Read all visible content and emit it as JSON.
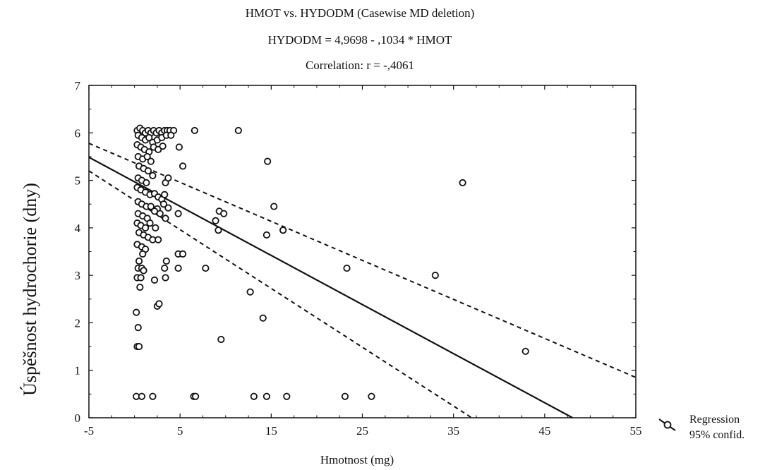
{
  "chart_data": {
    "type": "scatter",
    "title_lines": [
      "HMOT vs. HYDODM (Casewise MD deletion)",
      "HYDODM = 4,9698 - ,1034 * HMOT",
      "Correlation: r = -,4061"
    ],
    "xlabel": "Hmotnost (mg)",
    "ylabel": "Úspěšnost hydrochorie (dny)",
    "xlim": [
      -5,
      55
    ],
    "ylim": [
      0,
      7
    ],
    "xticks": [
      "-5",
      "5",
      "15",
      "25",
      "35",
      "45",
      "55"
    ],
    "yticks": [
      "0",
      "1",
      "2",
      "3",
      "4",
      "5",
      "6",
      "7"
    ],
    "grid": false,
    "regression": {
      "intercept": 4.9698,
      "slope": -0.1034
    },
    "confidence_band": {
      "upper": [
        [
          -5,
          5.78
        ],
        [
          55,
          0.85
        ]
      ],
      "lower": [
        [
          -5,
          5.2
        ],
        [
          37,
          0
        ]
      ]
    },
    "legend": {
      "position": "bottom-right",
      "entries": [
        "Regression",
        "95% confid."
      ]
    },
    "points": [
      [
        0.3,
        6.05
      ],
      [
        0.6,
        6.1
      ],
      [
        0.9,
        6.05
      ],
      [
        1.2,
        6.0
      ],
      [
        1.5,
        6.05
      ],
      [
        1.8,
        6.0
      ],
      [
        2.1,
        6.05
      ],
      [
        2.4,
        6.0
      ],
      [
        2.7,
        6.05
      ],
      [
        3.0,
        6.0
      ],
      [
        3.3,
        6.05
      ],
      [
        3.6,
        6.05
      ],
      [
        3.9,
        6.05
      ],
      [
        4.3,
        6.05
      ],
      [
        0.4,
        5.95
      ],
      [
        0.8,
        5.9
      ],
      [
        1.2,
        5.85
      ],
      [
        1.6,
        5.9
      ],
      [
        2.0,
        5.8
      ],
      [
        2.5,
        5.85
      ],
      [
        3.0,
        5.9
      ],
      [
        3.5,
        5.95
      ],
      [
        4.0,
        5.95
      ],
      [
        0.3,
        5.75
      ],
      [
        0.7,
        5.7
      ],
      [
        1.1,
        5.65
      ],
      [
        1.6,
        5.6
      ],
      [
        2.1,
        5.7
      ],
      [
        2.6,
        5.65
      ],
      [
        3.1,
        5.72
      ],
      [
        0.4,
        5.5
      ],
      [
        0.9,
        5.45
      ],
      [
        1.4,
        5.5
      ],
      [
        1.8,
        5.4
      ],
      [
        0.5,
        5.3
      ],
      [
        1.0,
        5.25
      ],
      [
        1.5,
        5.2
      ],
      [
        2.0,
        5.1
      ],
      [
        0.4,
        5.05
      ],
      [
        0.8,
        5.0
      ],
      [
        1.3,
        4.95
      ],
      [
        3.4,
        4.95
      ],
      [
        3.7,
        5.05
      ],
      [
        0.3,
        4.85
      ],
      [
        0.7,
        4.8
      ],
      [
        1.2,
        4.75
      ],
      [
        1.7,
        4.7
      ],
      [
        2.2,
        4.72
      ],
      [
        2.6,
        4.65
      ],
      [
        3.0,
        4.6
      ],
      [
        3.3,
        4.7
      ],
      [
        0.4,
        4.55
      ],
      [
        0.8,
        4.5
      ],
      [
        1.3,
        4.45
      ],
      [
        1.8,
        4.45
      ],
      [
        2.5,
        4.4
      ],
      [
        3.2,
        4.5
      ],
      [
        3.7,
        4.42
      ],
      [
        0.4,
        4.3
      ],
      [
        0.9,
        4.25
      ],
      [
        1.4,
        4.2
      ],
      [
        2.2,
        4.35
      ],
      [
        2.8,
        4.3
      ],
      [
        3.4,
        4.2
      ],
      [
        4.8,
        4.3
      ],
      [
        0.3,
        4.1
      ],
      [
        0.7,
        4.05
      ],
      [
        1.2,
        4.0
      ],
      [
        1.7,
        4.1
      ],
      [
        2.3,
        4.0
      ],
      [
        0.5,
        3.9
      ],
      [
        1.0,
        3.85
      ],
      [
        1.5,
        3.8
      ],
      [
        2.0,
        3.75
      ],
      [
        2.6,
        3.75
      ],
      [
        0.3,
        3.65
      ],
      [
        0.8,
        3.6
      ],
      [
        1.2,
        3.55
      ],
      [
        0.9,
        3.45
      ],
      [
        0.5,
        3.3
      ],
      [
        3.5,
        3.3
      ],
      [
        4.8,
        3.45
      ],
      [
        5.3,
        3.45
      ],
      [
        0.4,
        3.15
      ],
      [
        0.8,
        3.15
      ],
      [
        1.0,
        3.1
      ],
      [
        3.3,
        3.15
      ],
      [
        4.8,
        3.15
      ],
      [
        0.3,
        2.95
      ],
      [
        0.7,
        2.95
      ],
      [
        2.2,
        2.9
      ],
      [
        3.4,
        2.95
      ],
      [
        0.6,
        2.75
      ],
      [
        2.5,
        2.35
      ],
      [
        2.7,
        2.4
      ],
      [
        0.2,
        2.22
      ],
      [
        0.4,
        1.9
      ],
      [
        0.3,
        1.5
      ],
      [
        0.5,
        1.5
      ],
      [
        0.2,
        0.45
      ],
      [
        0.8,
        0.45
      ],
      [
        2.0,
        0.45
      ],
      [
        6.6,
        6.05
      ],
      [
        11.4,
        6.05
      ],
      [
        4.9,
        5.7
      ],
      [
        14.6,
        5.4
      ],
      [
        5.3,
        5.3
      ],
      [
        36.0,
        4.95
      ],
      [
        15.3,
        4.45
      ],
      [
        9.3,
        4.35
      ],
      [
        9.8,
        4.3
      ],
      [
        8.9,
        4.15
      ],
      [
        9.2,
        3.95
      ],
      [
        14.5,
        3.85
      ],
      [
        16.3,
        3.95
      ],
      [
        7.8,
        3.15
      ],
      [
        23.3,
        3.15
      ],
      [
        33.0,
        3.0
      ],
      [
        12.7,
        2.65
      ],
      [
        14.1,
        2.1
      ],
      [
        9.5,
        1.65
      ],
      [
        42.9,
        1.4
      ],
      [
        6.5,
        0.45
      ],
      [
        6.7,
        0.45
      ],
      [
        13.1,
        0.45
      ],
      [
        14.5,
        0.45
      ],
      [
        16.7,
        0.45
      ],
      [
        23.1,
        0.45
      ],
      [
        26.0,
        0.45
      ]
    ]
  }
}
